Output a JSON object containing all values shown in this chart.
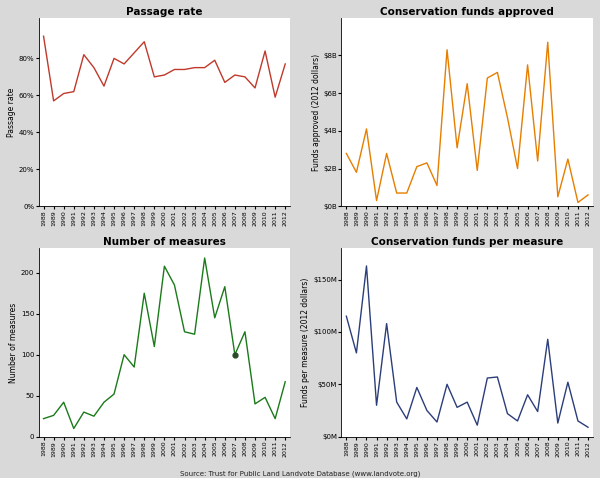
{
  "years": [
    1988,
    1989,
    1990,
    1991,
    1992,
    1993,
    1994,
    1995,
    1996,
    1997,
    1998,
    1999,
    2000,
    2001,
    2002,
    2003,
    2004,
    2005,
    2006,
    2007,
    2008,
    2009,
    2010,
    2011,
    2012
  ],
  "passage_rate": [
    0.92,
    0.57,
    0.61,
    0.62,
    0.82,
    0.75,
    0.65,
    0.8,
    0.77,
    0.83,
    0.89,
    0.7,
    0.71,
    0.74,
    0.74,
    0.75,
    0.75,
    0.79,
    0.67,
    0.71,
    0.7,
    0.64,
    0.84,
    0.59,
    0.77
  ],
  "conservation_funds": [
    2.8,
    1.8,
    4.1,
    0.3,
    2.8,
    0.7,
    0.7,
    2.1,
    2.3,
    1.1,
    8.3,
    3.1,
    6.5,
    1.9,
    6.8,
    7.1,
    4.7,
    2.0,
    7.5,
    2.4,
    8.7,
    0.5,
    2.5,
    0.2,
    0.6
  ],
  "num_measures": [
    22,
    26,
    42,
    10,
    30,
    25,
    42,
    52,
    100,
    85,
    175,
    110,
    208,
    185,
    128,
    125,
    218,
    145,
    183,
    100,
    128,
    40,
    48,
    22,
    67
  ],
  "funds_per_measure": [
    115,
    80,
    163,
    30,
    108,
    33,
    17,
    47,
    25,
    14,
    50,
    28,
    33,
    11,
    56,
    57,
    22,
    15,
    40,
    24,
    93,
    13,
    52,
    15,
    9
  ],
  "passage_color": "#c0392b",
  "funds_color": "#e67e00",
  "measures_color": "#1a7a1a",
  "fpm_color": "#2c3e7a",
  "bg_color": "#d9d9d9",
  "plot_bg": "#ffffff",
  "title1": "Passage rate",
  "title2": "Conservation funds approved",
  "title3": "Number of measures",
  "title4": "Conservation funds per measure",
  "ylabel1": "Passage rate",
  "ylabel2": "Funds approved (2012 dollars)",
  "ylabel3": "Number of measures",
  "ylabel4": "Funds per measure (2012 dollars)",
  "source": "Source: Trust for Public Land Landvote Database (www.landvote.org)",
  "marker_year": 2007,
  "marker_value": 100
}
